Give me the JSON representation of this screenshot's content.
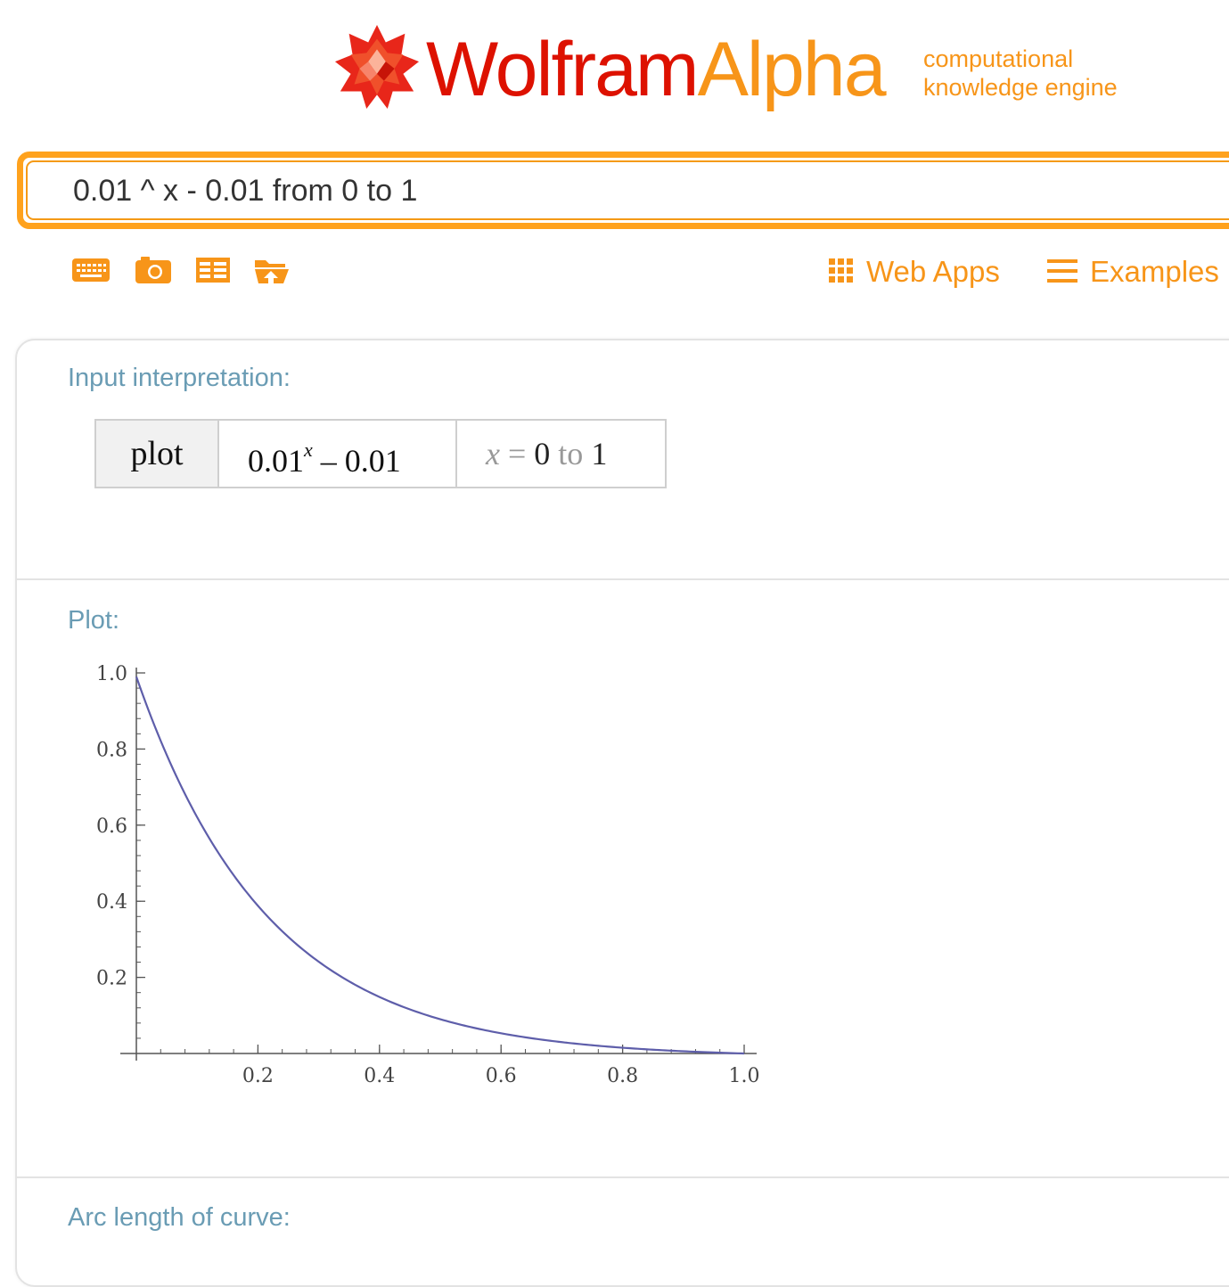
{
  "logo": {
    "wordmark_part1": "Wolfram",
    "wordmark_part2": "Alpha",
    "tagline_line1": "computational",
    "tagline_line2": "knowledge engine",
    "star_icon": "wolfram-star-icon"
  },
  "search": {
    "value": "0.01 ^ x - 0.01 from 0 to 1"
  },
  "toolbar": {
    "icons": [
      "keyboard-icon",
      "camera-icon",
      "table-icon",
      "upload-folder-icon"
    ],
    "web_apps_label": "Web Apps",
    "examples_label": "Examples"
  },
  "pods": {
    "input_interpretation_title": "Input interpretation:",
    "interp_cell1": "plot",
    "interp_cell2_base": "0.01",
    "interp_cell2_exp": "x",
    "interp_cell2_rest": " – 0.01",
    "interp_cell3_var": "x",
    "interp_cell3_eq": " = ",
    "interp_cell3_from": "0",
    "interp_cell3_to": " to ",
    "interp_cell3_end": "1",
    "plot_title": "Plot:",
    "arc_length_title": "Arc length of curve:"
  },
  "colors": {
    "brand_red": "#dd1100",
    "brand_orange": "#f79519",
    "pod_title": "#6a9cb4",
    "curve": "#5e5eaa"
  },
  "chart_data": {
    "type": "line",
    "function": "0.01^x - 0.01",
    "x_range": [
      0,
      1
    ],
    "xlim": [
      0,
      1
    ],
    "ylim": [
      0,
      1
    ],
    "x_ticks": [
      0.2,
      0.4,
      0.6,
      0.8,
      1.0
    ],
    "x_tick_labels": [
      "0.2",
      "0.4",
      "0.6",
      "0.8",
      "1.0"
    ],
    "y_ticks": [
      0.2,
      0.4,
      0.6,
      0.8,
      1.0
    ],
    "y_tick_labels": [
      "0.2",
      "0.4",
      "0.6",
      "0.8",
      "1.0"
    ],
    "series": [
      {
        "x": [
          0,
          0.05,
          0.1,
          0.15,
          0.2,
          0.25,
          0.3,
          0.35,
          0.4,
          0.45,
          0.5,
          0.55,
          0.6,
          0.65,
          0.7,
          0.75,
          0.8,
          0.85,
          0.9,
          0.95,
          1.0
        ],
        "y": [
          0.99,
          0.7843,
          0.621,
          0.4911,
          0.3881,
          0.3062,
          0.2412,
          0.1895,
          0.1485,
          0.1159,
          0.09,
          0.0694,
          0.0531,
          0.0401,
          0.0298,
          0.0216,
          0.0151,
          0.01,
          0.0058,
          0.0026,
          0.0
        ]
      }
    ],
    "grid": false
  }
}
